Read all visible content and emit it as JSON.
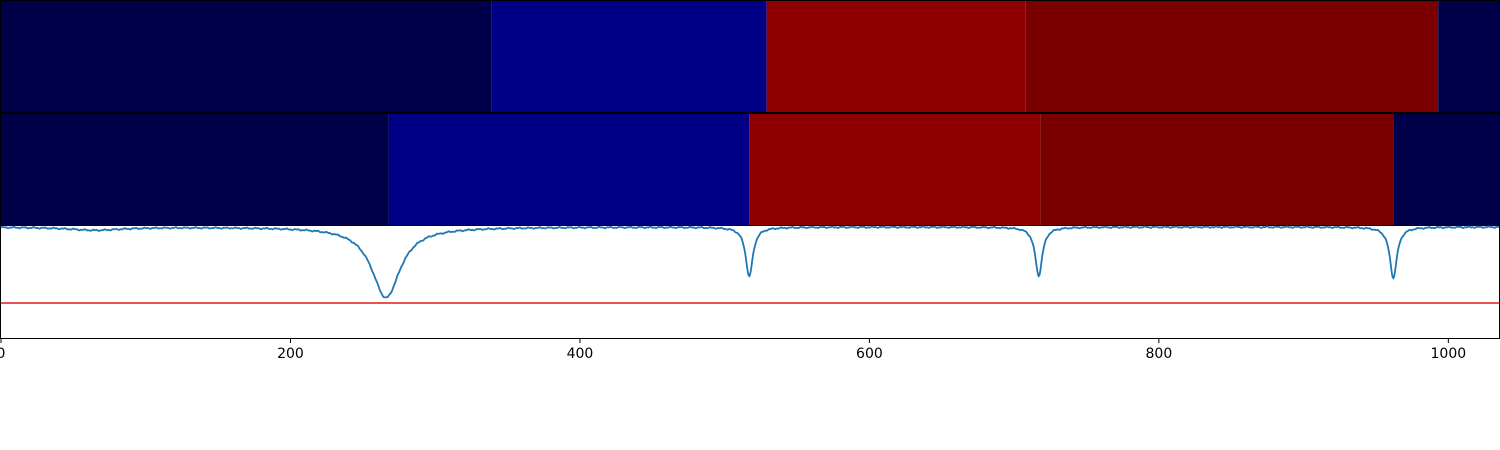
{
  "chart_data": {
    "type": "line",
    "xlim": [
      0,
      1035
    ],
    "x_ticks": [
      {
        "value": 0,
        "label": "0"
      },
      {
        "value": 200,
        "label": "200"
      },
      {
        "value": 400,
        "label": "400"
      },
      {
        "value": 600,
        "label": "600"
      },
      {
        "value": 800,
        "label": "800"
      },
      {
        "value": 1000,
        "label": "1000"
      }
    ],
    "segment_bars": [
      {
        "name": "top",
        "segments": [
          {
            "start": 0,
            "end": 339,
            "color": "#00004a"
          },
          {
            "start": 339,
            "end": 529,
            "color": "#000087"
          },
          {
            "start": 529,
            "end": 708,
            "color": "#8f0000"
          },
          {
            "start": 708,
            "end": 993,
            "color": "#7a0000"
          },
          {
            "start": 993,
            "end": 1035,
            "color": "#00004a"
          }
        ]
      },
      {
        "name": "middle",
        "segments": [
          {
            "start": 0,
            "end": 268,
            "color": "#00004a"
          },
          {
            "start": 268,
            "end": 517,
            "color": "#000087"
          },
          {
            "start": 517,
            "end": 718,
            "color": "#8f0000"
          },
          {
            "start": 718,
            "end": 962,
            "color": "#7a0000"
          },
          {
            "start": 962,
            "end": 1035,
            "color": "#00004a"
          }
        ]
      }
    ],
    "signal": {
      "color": "#1f77b4",
      "ylim": [
        -1.0,
        0.0
      ],
      "baseline": 0.0,
      "dips": [
        {
          "center": 65,
          "depth": 0.04,
          "width": 22
        },
        {
          "center": 266,
          "depth": 0.93,
          "width": 12
        },
        {
          "center": 517,
          "depth": 0.65,
          "width": 3
        },
        {
          "center": 717,
          "depth": 0.64,
          "width": 3
        },
        {
          "center": 962,
          "depth": 0.67,
          "width": 3
        }
      ]
    },
    "threshold": {
      "value": -1.0,
      "color": "#e41a1c"
    }
  }
}
